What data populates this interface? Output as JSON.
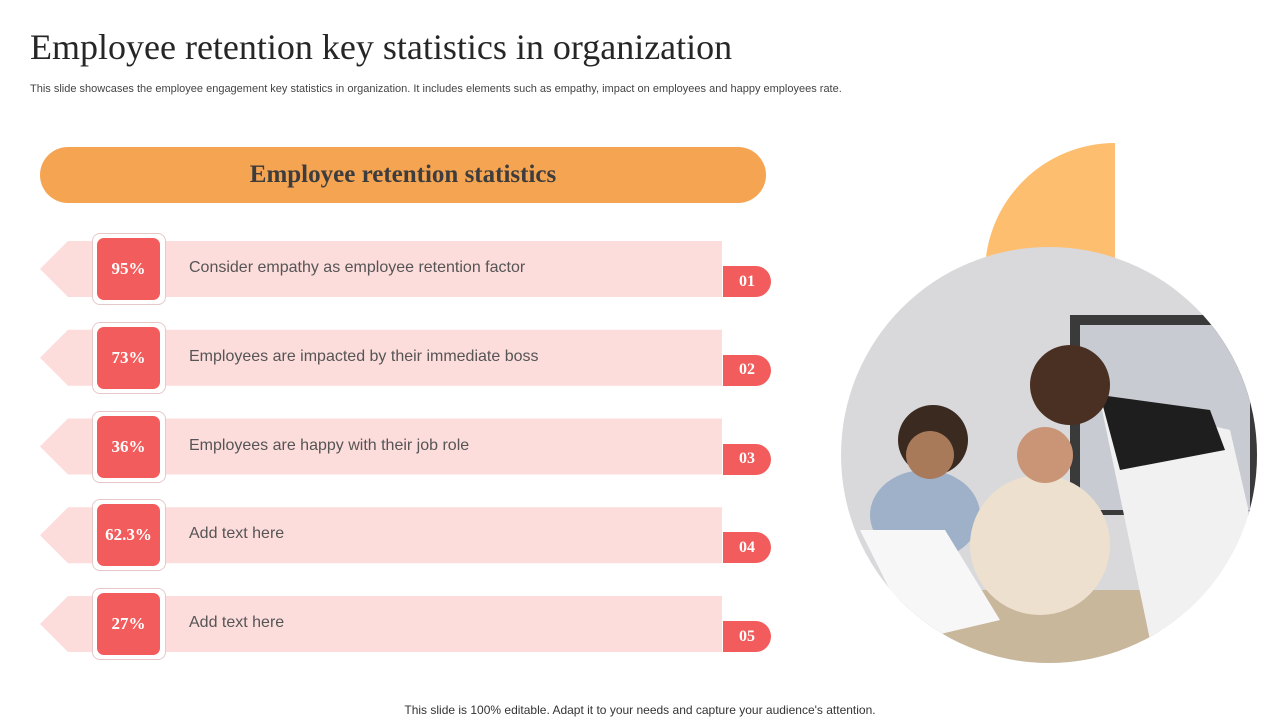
{
  "header": {
    "title": "Employee retention key statistics in organization",
    "subtitle": "This slide showcases the employee engagement key statistics in organization. It includes elements such as empathy, impact on employees and happy employees rate."
  },
  "banner": {
    "title": "Employee retention statistics"
  },
  "items": [
    {
      "stat": "95%",
      "text": "Consider empathy as employee retention factor",
      "number": "01"
    },
    {
      "stat": "73%",
      "text": "Employees are impacted by their immediate boss",
      "number": "02"
    },
    {
      "stat": "36%",
      "text": "Employees are happy with their job role",
      "number": "03"
    },
    {
      "stat": "62.3%",
      "text": "Add text here",
      "number": "04"
    },
    {
      "stat": "27%",
      "text": "Add text here",
      "number": "05"
    }
  ],
  "footer": {
    "text": "This slide is 100% editable. Adapt it to your needs and capture your audience's attention."
  }
}
